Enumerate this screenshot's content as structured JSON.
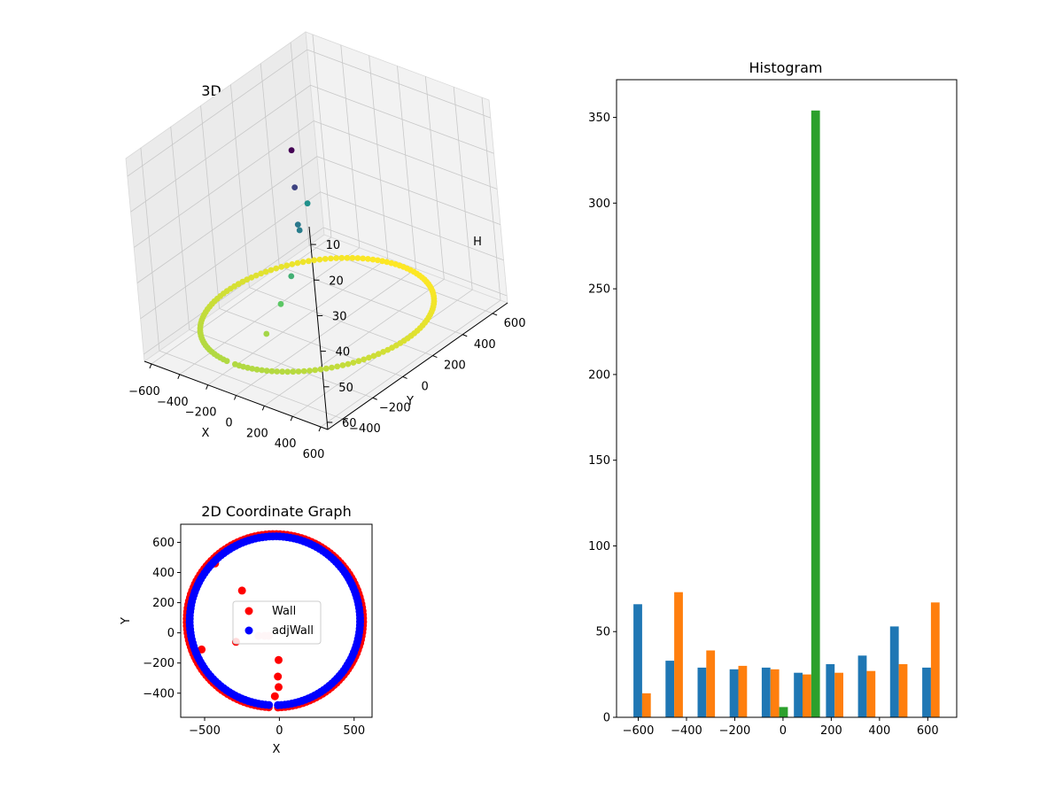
{
  "chart_data": [
    {
      "type": "scatter",
      "projection": "3d",
      "title": "3D Coordinate Graph",
      "xlabel": "X",
      "ylabel": "Y",
      "zlabel": "H",
      "xticks": [
        -600,
        -400,
        -200,
        0,
        200,
        400,
        600
      ],
      "yticks": [
        -400,
        -200,
        0,
        200,
        400,
        600
      ],
      "zticks": [
        10,
        20,
        30,
        40,
        50,
        60
      ],
      "xlim": [
        -650,
        650
      ],
      "ylim": [
        -500,
        700
      ],
      "zlim": [
        5,
        62
      ],
      "z_inverted": true,
      "colormap": "viridis",
      "grid": true
    },
    {
      "type": "scatter",
      "title": "2D Coordinate Graph",
      "xlabel": "X",
      "ylabel": "Y",
      "xticks": [
        -500,
        0,
        500
      ],
      "yticks": [
        -400,
        -200,
        0,
        200,
        400,
        600
      ],
      "xlim": [
        -660,
        620
      ],
      "ylim": [
        -560,
        720
      ],
      "legend_placement": "center",
      "series": [
        {
          "name": "Wall",
          "color": "#ff0000",
          "ring": {
            "cx": -30,
            "cy": 80,
            "rx": 590,
            "ry": 575,
            "start_deg": -88,
            "end_deg": 266
          },
          "points": [
            [
              -430,
              460
            ],
            [
              -250,
              280
            ],
            [
              -520,
              -110
            ],
            [
              -290,
              -60
            ],
            [
              -5,
              -180
            ],
            [
              -10,
              -290
            ],
            [
              -5,
              -360
            ],
            [
              -30,
              -420
            ]
          ]
        },
        {
          "name": "adjWall",
          "color": "#0000ff",
          "ring": {
            "cx": -30,
            "cy": 80,
            "rx": 570,
            "ry": 560,
            "start_deg": -88,
            "end_deg": 266
          },
          "points": []
        },
        {
          "name": "",
          "color": "#ffc0cb",
          "points": [
            [
              -140,
              -20
            ],
            [
              -100,
              -20
            ],
            [
              -70,
              -20
            ]
          ]
        }
      ]
    },
    {
      "type": "bar",
      "title": "Histogram",
      "xticks": [
        -600,
        -400,
        -200,
        0,
        200,
        400,
        600
      ],
      "yticks": [
        0,
        50,
        100,
        150,
        200,
        250,
        300,
        350
      ],
      "xlim": [
        -690,
        720
      ],
      "ylim": [
        0,
        372
      ],
      "series": [
        {
          "color": "#1f77b4",
          "bins": [
            [
              -620,
              -584,
              66
            ],
            [
              -487,
              -451,
              33
            ],
            [
              -354,
              -318,
              29
            ],
            [
              -221,
              -185,
              28
            ],
            [
              -88,
              -52,
              29
            ],
            [
              45,
              81,
              26
            ],
            [
              178,
              214,
              31
            ],
            [
              311,
              347,
              36
            ],
            [
              444,
              480,
              53
            ],
            [
              577,
              613,
              29
            ]
          ]
        },
        {
          "color": "#ff7f0e",
          "bins": [
            [
              -584,
              -548,
              14
            ],
            [
              -451,
              -415,
              73
            ],
            [
              -318,
              -282,
              39
            ],
            [
              -185,
              -149,
              30
            ],
            [
              -52,
              -16,
              28
            ],
            [
              81,
              117,
              25
            ],
            [
              214,
              250,
              26
            ],
            [
              347,
              383,
              27
            ],
            [
              480,
              516,
              31
            ],
            [
              613,
              649,
              67
            ]
          ]
        },
        {
          "color": "#2ca02c",
          "bins": [
            [
              -16,
              20,
              6
            ],
            [
              117,
              153,
              354
            ]
          ]
        }
      ]
    }
  ]
}
